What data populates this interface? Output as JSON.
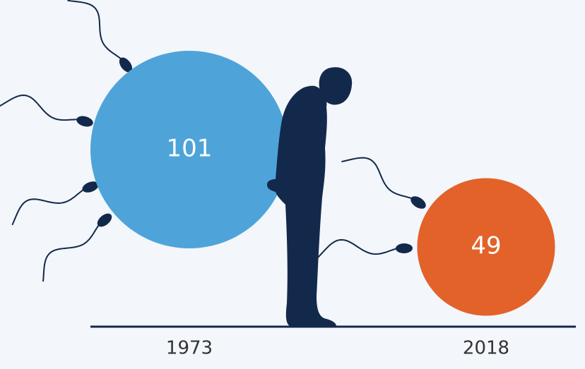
{
  "chart_data": {
    "type": "bubble",
    "categories": [
      "1973",
      "2018"
    ],
    "values": [
      101,
      49
    ],
    "colors": [
      "#4ea4d9",
      "#e2622a"
    ]
  }
}
